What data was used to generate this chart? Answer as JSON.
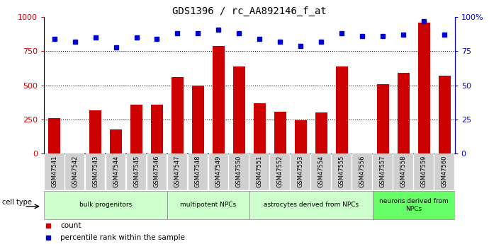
{
  "title": "GDS1396 / rc_AA892146_f_at",
  "samples": [
    "GSM47541",
    "GSM47542",
    "GSM47543",
    "GSM47544",
    "GSM47545",
    "GSM47546",
    "GSM47547",
    "GSM47548",
    "GSM47549",
    "GSM47550",
    "GSM47551",
    "GSM47552",
    "GSM47553",
    "GSM47554",
    "GSM47555",
    "GSM47556",
    "GSM47557",
    "GSM47558",
    "GSM47559",
    "GSM47560"
  ],
  "counts": [
    260,
    0,
    320,
    180,
    360,
    360,
    560,
    500,
    790,
    640,
    370,
    305,
    245,
    300,
    640,
    0,
    510,
    590,
    960,
    570
  ],
  "percentiles": [
    84,
    82,
    85,
    78,
    85,
    84,
    88,
    88,
    91,
    88,
    84,
    82,
    79,
    82,
    88,
    86,
    86,
    87,
    97,
    87
  ],
  "group_boundaries": [
    0,
    6,
    10,
    16,
    20
  ],
  "group_labels": [
    "bulk progenitors",
    "multipotent NPCs",
    "astrocytes derived from NPCs",
    "neurons derived from\nNPCs"
  ],
  "group_colors": [
    "#ccffcc",
    "#ccffcc",
    "#ccffcc",
    "#66ff66"
  ],
  "bar_color": "#cc0000",
  "dot_color": "#0000cc",
  "ylim_left": [
    0,
    1000
  ],
  "ylim_right": [
    0,
    100
  ],
  "yticks_left": [
    0,
    250,
    500,
    750,
    1000
  ],
  "ytick_labels_left": [
    "0",
    "250",
    "500",
    "750",
    "1000"
  ],
  "yticks_right": [
    0,
    25,
    50,
    75,
    100
  ],
  "ytick_labels_right": [
    "0",
    "25",
    "50",
    "75",
    "100%"
  ],
  "grid_lines": [
    250,
    500,
    750
  ],
  "xticklabel_bg": "#d0d0d0"
}
